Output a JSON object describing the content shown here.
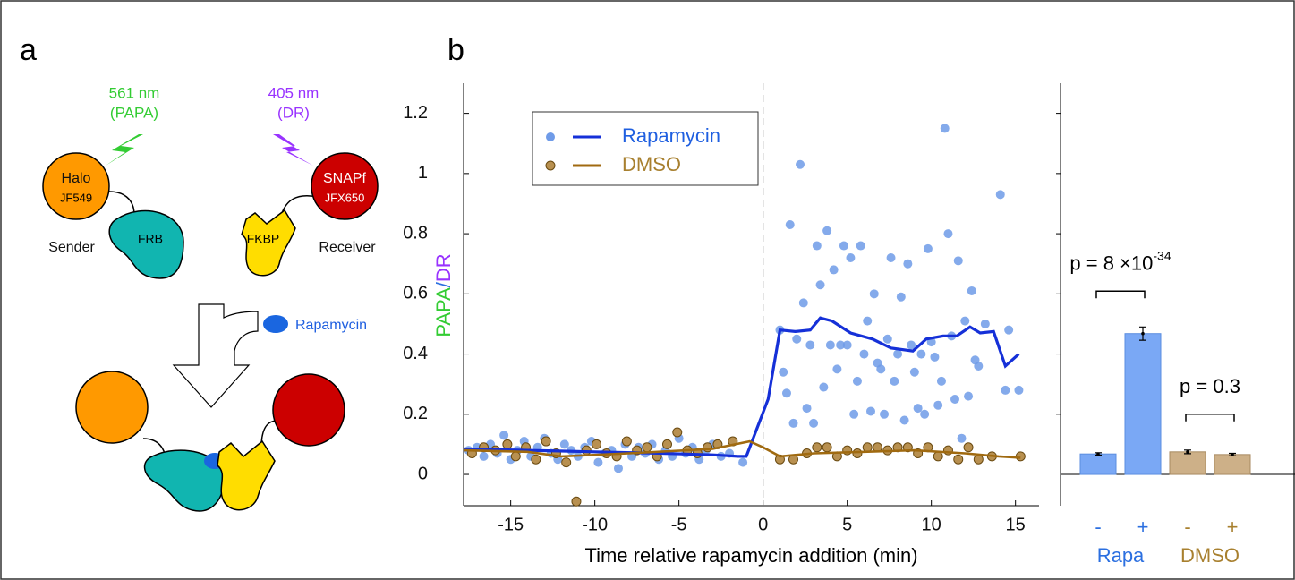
{
  "panels": [
    "a",
    "b"
  ],
  "diagram": {
    "green_laser": [
      "561 nm",
      "(PAPA)"
    ],
    "purple_laser": [
      "405 nm",
      "(DR)"
    ],
    "halo": [
      "Halo",
      "JF549"
    ],
    "sender": "Sender",
    "frb": "FRB",
    "snap": [
      "SNAPf",
      "JFX650"
    ],
    "fkbp": "FKBP",
    "receiver": "Receiver",
    "rapamycin": "Rapamycin"
  },
  "chart_data": [
    {
      "type": "scatter",
      "xlabel": "Time relative rapamycin addition (min)",
      "ylabel_parts": [
        {
          "text": "PAPA",
          "color": "#33cc33"
        },
        {
          "text": "/",
          "color": "#2b6fe0"
        },
        {
          "text": "DR",
          "color": "#9933ff"
        }
      ],
      "xlim": [
        -17.8,
        16.4
      ],
      "ylim": [
        -0.104,
        1.3
      ],
      "xticks": [
        -15,
        -10,
        -5,
        0,
        5,
        10,
        15
      ],
      "yticks": [
        0,
        0.2,
        0.4,
        0.6,
        0.8,
        1,
        1.2
      ],
      "vline": 0,
      "legend": "top-left",
      "series": [
        {
          "name": "Rapamycin",
          "color": "#6f9be8",
          "line_color": "#1530d8",
          "label_color": "#1f5fe0",
          "x": [
            -17.5,
            -17,
            -16.6,
            -16.2,
            -15.8,
            -15.4,
            -15,
            -14.6,
            -14.2,
            -13.8,
            -13.4,
            -13,
            -12.6,
            -12.2,
            -11.8,
            -11.4,
            -11,
            -10.6,
            -10.2,
            -9.8,
            -9.4,
            -9,
            -8.6,
            -8.2,
            -7.8,
            -7.4,
            -7,
            -6.6,
            -6.2,
            -5.8,
            -5.4,
            -5,
            -4.6,
            -4.2,
            -3.8,
            -3.4,
            -3,
            -2.5,
            -2,
            -1.2,
            1.0,
            1.2,
            1.4,
            1.6,
            1.8,
            2.0,
            2.2,
            2.4,
            2.6,
            2.8,
            3.0,
            3.2,
            3.4,
            3.6,
            3.8,
            4.0,
            4.2,
            4.4,
            4.6,
            4.8,
            5.0,
            5.2,
            5.4,
            5.6,
            5.8,
            6.0,
            6.2,
            6.4,
            6.6,
            6.8,
            7.0,
            7.2,
            7.4,
            7.6,
            7.8,
            8.0,
            8.2,
            8.4,
            8.6,
            8.8,
            9.0,
            9.2,
            9.4,
            9.6,
            9.8,
            10.0,
            10.2,
            10.4,
            10.8,
            10.6,
            11.0,
            11.2,
            11.4,
            11.6,
            11.8,
            12.0,
            12.2,
            12.4,
            12.6,
            12.8,
            13.2,
            14.1,
            14.4,
            14.6,
            15.2
          ],
          "values": [
            0.08,
            0.09,
            0.06,
            0.1,
            0.07,
            0.13,
            0.05,
            0.08,
            0.11,
            0.06,
            0.09,
            0.12,
            0.07,
            0.05,
            0.1,
            0.08,
            0.06,
            0.09,
            0.11,
            0.04,
            0.07,
            0.08,
            0.02,
            0.1,
            0.06,
            0.09,
            0.07,
            0.1,
            0.05,
            0.08,
            0.06,
            0.12,
            0.07,
            0.09,
            0.05,
            0.08,
            0.1,
            0.06,
            0.07,
            0.04,
            0.48,
            0.34,
            0.27,
            0.83,
            0.17,
            0.45,
            1.03,
            0.57,
            0.22,
            0.43,
            0.17,
            0.76,
            0.63,
            0.29,
            0.81,
            0.43,
            0.68,
            0.35,
            0.43,
            0.76,
            0.43,
            0.72,
            0.2,
            0.31,
            0.76,
            0.4,
            0.51,
            0.21,
            0.6,
            0.37,
            0.35,
            0.2,
            0.45,
            0.72,
            0.31,
            0.4,
            0.59,
            0.18,
            0.7,
            0.43,
            0.34,
            0.22,
            0.4,
            0.2,
            0.75,
            0.44,
            0.39,
            0.23,
            1.15,
            0.31,
            0.8,
            0.46,
            0.25,
            0.71,
            0.12,
            0.51,
            0.26,
            0.61,
            0.38,
            0.36,
            0.5,
            0.93,
            0.28,
            0.48,
            0.28
          ],
          "line_x": [
            -17.8,
            -14,
            -10,
            -6,
            -3,
            -1.5,
            -1,
            0.3,
            1.0,
            1.9,
            2.8,
            3.4,
            4.1,
            5.2,
            6.5,
            7.6,
            8.9,
            9.7,
            10.7,
            11.5,
            12.3,
            12.9,
            13.7,
            14.4,
            15.2
          ],
          "line_values": [
            0.085,
            0.08,
            0.075,
            0.07,
            0.065,
            0.06,
            0.06,
            0.25,
            0.48,
            0.475,
            0.48,
            0.52,
            0.51,
            0.47,
            0.45,
            0.42,
            0.41,
            0.45,
            0.46,
            0.46,
            0.49,
            0.47,
            0.475,
            0.36,
            0.4
          ]
        },
        {
          "name": "DMSO",
          "color": "#b89050",
          "line_color": "#a06a10",
          "label_color": "#a8802f",
          "x": [
            -17.3,
            -16.6,
            -15.9,
            -15.2,
            -14.7,
            -14.1,
            -13.5,
            -12.9,
            -12.3,
            -11.7,
            -11.1,
            -10.5,
            -9.9,
            -9.3,
            -8.7,
            -8.1,
            -7.5,
            -6.9,
            -6.3,
            -5.7,
            -5.1,
            -4.5,
            -3.9,
            -3.3,
            -2.7,
            -1.8,
            1.0,
            1.8,
            2.6,
            3.2,
            3.8,
            4.4,
            5.0,
            5.6,
            6.2,
            6.8,
            7.4,
            8.0,
            8.6,
            9.2,
            9.8,
            10.4,
            11.0,
            11.6,
            12.2,
            12.8,
            13.6,
            15.3
          ],
          "values": [
            0.07,
            0.09,
            0.08,
            0.1,
            0.06,
            0.09,
            0.05,
            0.11,
            0.07,
            0.04,
            -0.09,
            0.08,
            0.1,
            0.07,
            0.06,
            0.11,
            0.08,
            0.09,
            0.06,
            0.1,
            0.14,
            0.08,
            0.07,
            0.09,
            0.1,
            0.11,
            0.05,
            0.05,
            0.07,
            0.09,
            0.09,
            0.06,
            0.08,
            0.07,
            0.09,
            0.09,
            0.08,
            0.09,
            0.09,
            0.07,
            0.09,
            0.06,
            0.08,
            0.05,
            0.09,
            0.05,
            0.06,
            0.06
          ],
          "line_x": [
            -17.8,
            -14,
            -12,
            -8,
            -3,
            -0.8,
            0,
            1,
            3,
            6,
            9,
            12,
            14,
            15.3
          ],
          "line_values": [
            0.08,
            0.075,
            0.06,
            0.07,
            0.085,
            0.11,
            0.09,
            0.06,
            0.07,
            0.075,
            0.08,
            0.07,
            0.06,
            0.055
          ]
        }
      ]
    },
    {
      "type": "bar",
      "categories": [
        "-",
        "+",
        "-",
        "+"
      ],
      "values": [
        0.068,
        0.468,
        0.075,
        0.066
      ],
      "errors": [
        0.004,
        0.022,
        0.006,
        0.004
      ],
      "colors": [
        "#7aa8f5",
        "#7aa8f5",
        "#cdb088",
        "#cdb088"
      ],
      "groups": [
        {
          "label": "Rapa",
          "color": "#2b6fe0"
        },
        {
          "label": "DMSO",
          "color": "#a8802f"
        }
      ],
      "annotations": [
        {
          "text": "p = 8 ×10",
          "sup": "-34"
        },
        {
          "text": "p = 0.3"
        }
      ],
      "ylim": [
        -0.104,
        1.3
      ],
      "yticks": [
        0.2,
        0.4,
        0.6,
        0.8,
        1,
        1.2
      ]
    }
  ]
}
